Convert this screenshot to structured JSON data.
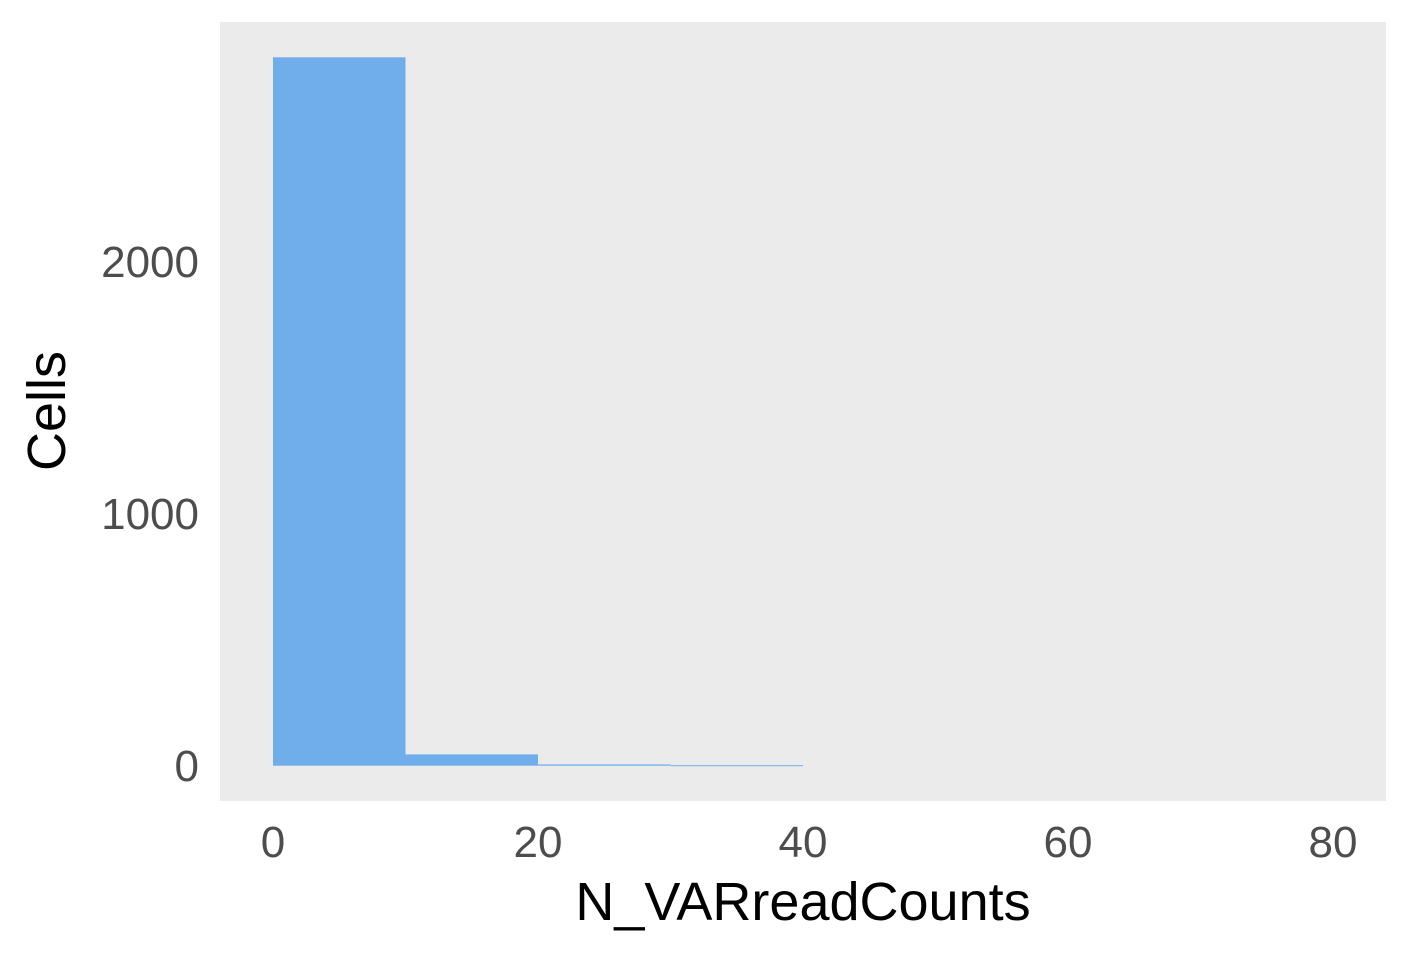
{
  "chart_data": {
    "type": "bar",
    "subtype": "histogram",
    "title": "",
    "xlabel": "N_VARreadCounts",
    "ylabel": "Cells",
    "bins": [
      {
        "x0": 0,
        "x1": 10,
        "count": 2810
      },
      {
        "x0": 10,
        "x1": 20,
        "count": 45
      },
      {
        "x0": 20,
        "x1": 30,
        "count": 5
      },
      {
        "x0": 30,
        "x1": 40,
        "count": 2
      }
    ],
    "xlim": [
      -4,
      84
    ],
    "ylim": [
      -140,
      2950
    ],
    "xticks": [
      0,
      20,
      40,
      60,
      80
    ],
    "xtick_labels": [
      "0",
      "20",
      "40",
      "60",
      "80"
    ],
    "yticks": [
      0,
      1000,
      2000
    ],
    "ytick_labels": [
      "0",
      "1000",
      "2000"
    ],
    "grid": false,
    "legend": "none",
    "bar_color": "#6faeeb",
    "panel_color": "#ebebeb"
  }
}
